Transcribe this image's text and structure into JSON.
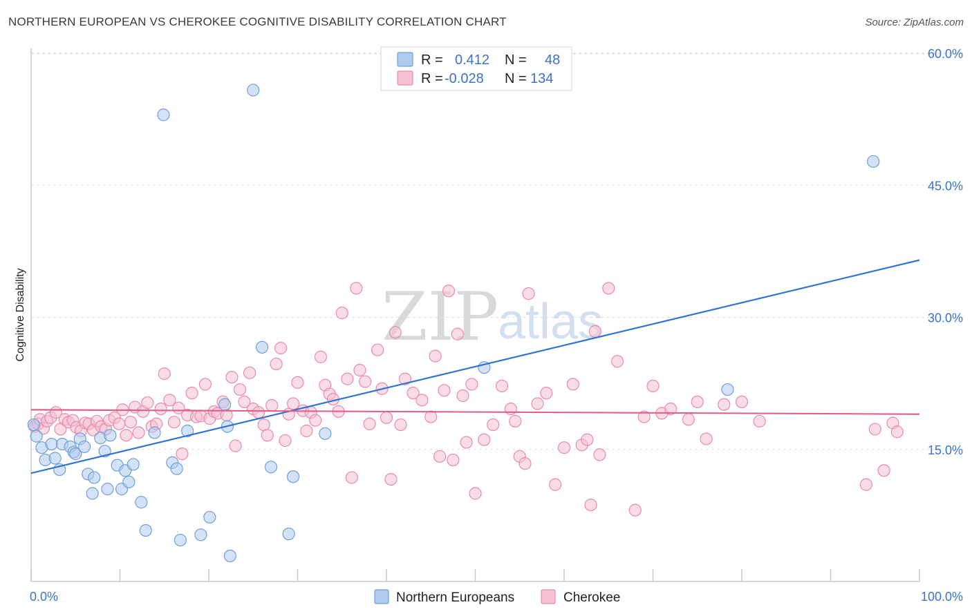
{
  "title": "NORTHERN EUROPEAN VS CHEROKEE COGNITIVE DISABILITY CORRELATION CHART",
  "source": "Source: ZipAtlas.com",
  "watermark": {
    "zip": "ZIP",
    "atlas": "atlas"
  },
  "legend": {
    "r_label": "R =",
    "n_label": "N =",
    "rows": [
      {
        "r": "0.412",
        "n": "48"
      },
      {
        "r": "-0.028",
        "n": "134"
      }
    ]
  },
  "colors": {
    "blue_fill": "#aecbef",
    "blue_stroke": "#6f9fd8",
    "blue_line": "#2f73d0",
    "pink_fill": "#f6c0d2",
    "pink_stroke": "#e88aab",
    "pink_line": "#e0608c"
  },
  "chart_data": {
    "type": "scatter",
    "title": "NORTHERN EUROPEAN VS CHEROKEE COGNITIVE DISABILITY CORRELATION CHART",
    "xlabel": "",
    "ylabel": "Cognitive Disability",
    "xlim": [
      0,
      100
    ],
    "ylim": [
      0,
      62
    ],
    "x_tick_labels": [
      "0.0%",
      "100.0%"
    ],
    "y_ticks": [
      15,
      30,
      45,
      60
    ],
    "y_tick_labels": [
      "15.0%",
      "30.0%",
      "45.0%",
      "60.0%"
    ],
    "grid": true,
    "legend_position": "top-center",
    "series": [
      {
        "name": "Northern Europeans",
        "trend": {
          "x": [
            0,
            100
          ],
          "y": [
            12.3,
            36.5
          ]
        },
        "points": [
          [
            0.3,
            17.8
          ],
          [
            0.6,
            16.5
          ],
          [
            1.2,
            15.2
          ],
          [
            1.6,
            13.8
          ],
          [
            2.3,
            15.6
          ],
          [
            2.7,
            14.0
          ],
          [
            3.2,
            12.7
          ],
          [
            3.5,
            15.6
          ],
          [
            4.4,
            15.3
          ],
          [
            4.8,
            14.7
          ],
          [
            5.0,
            14.5
          ],
          [
            5.5,
            16.2
          ],
          [
            6.0,
            15.3
          ],
          [
            6.4,
            12.2
          ],
          [
            6.9,
            10.0
          ],
          [
            7.1,
            11.8
          ],
          [
            7.8,
            16.3
          ],
          [
            8.3,
            14.8
          ],
          [
            8.6,
            10.5
          ],
          [
            8.9,
            16.6
          ],
          [
            9.7,
            13.2
          ],
          [
            10.2,
            10.5
          ],
          [
            10.6,
            12.6
          ],
          [
            11.0,
            11.3
          ],
          [
            11.5,
            13.3
          ],
          [
            12.4,
            9.0
          ],
          [
            12.9,
            5.8
          ],
          [
            13.9,
            16.9
          ],
          [
            14.9,
            53.0
          ],
          [
            15.9,
            13.5
          ],
          [
            16.4,
            12.8
          ],
          [
            16.8,
            4.7
          ],
          [
            17.6,
            17.1
          ],
          [
            19.1,
            5.3
          ],
          [
            20.1,
            7.3
          ],
          [
            21.8,
            20.1
          ],
          [
            22.1,
            17.6
          ],
          [
            22.4,
            2.9
          ],
          [
            25.0,
            55.8
          ],
          [
            26.0,
            26.6
          ],
          [
            27.0,
            13.0
          ],
          [
            29.0,
            5.4
          ],
          [
            29.5,
            11.9
          ],
          [
            33.1,
            16.8
          ],
          [
            51.0,
            24.3
          ],
          [
            78.4,
            21.8
          ],
          [
            94.8,
            47.7
          ]
        ]
      },
      {
        "name": "Cherokee",
        "trend": {
          "x": [
            0,
            100
          ],
          "y": [
            19.5,
            19.0
          ]
        },
        "points": [
          [
            0.4,
            17.6
          ],
          [
            0.8,
            17.9
          ],
          [
            1.0,
            18.4
          ],
          [
            1.4,
            17.4
          ],
          [
            1.8,
            18.2
          ],
          [
            2.2,
            18.6
          ],
          [
            2.8,
            19.2
          ],
          [
            3.3,
            17.3
          ],
          [
            3.8,
            18.4
          ],
          [
            4.2,
            18.1
          ],
          [
            4.7,
            18.3
          ],
          [
            5.1,
            17.5
          ],
          [
            5.6,
            17.1
          ],
          [
            6.1,
            18.0
          ],
          [
            6.5,
            17.9
          ],
          [
            7.0,
            17.2
          ],
          [
            7.4,
            18.2
          ],
          [
            7.9,
            17.6
          ],
          [
            8.4,
            17.3
          ],
          [
            8.8,
            18.3
          ],
          [
            9.4,
            18.6
          ],
          [
            9.9,
            17.9
          ],
          [
            10.3,
            19.5
          ],
          [
            10.7,
            16.6
          ],
          [
            11.2,
            18.1
          ],
          [
            11.7,
            19.8
          ],
          [
            12.1,
            16.9
          ],
          [
            12.6,
            19.3
          ],
          [
            13.1,
            20.3
          ],
          [
            13.6,
            17.6
          ],
          [
            14.1,
            17.9
          ],
          [
            14.6,
            19.6
          ],
          [
            15.0,
            23.6
          ],
          [
            15.6,
            20.6
          ],
          [
            16.1,
            18.1
          ],
          [
            16.6,
            19.7
          ],
          [
            17.0,
            14.5
          ],
          [
            17.6,
            18.9
          ],
          [
            18.1,
            21.4
          ],
          [
            18.6,
            18.7
          ],
          [
            19.1,
            18.8
          ],
          [
            19.6,
            22.4
          ],
          [
            20.1,
            18.5
          ],
          [
            20.6,
            19.3
          ],
          [
            21.0,
            19.1
          ],
          [
            21.6,
            20.4
          ],
          [
            22.0,
            18.9
          ],
          [
            22.6,
            23.2
          ],
          [
            23.0,
            15.4
          ],
          [
            23.5,
            21.8
          ],
          [
            24.0,
            20.4
          ],
          [
            24.6,
            23.7
          ],
          [
            25.0,
            19.6
          ],
          [
            25.6,
            19.2
          ],
          [
            26.2,
            17.8
          ],
          [
            26.6,
            16.6
          ],
          [
            27.1,
            20.0
          ],
          [
            27.6,
            24.7
          ],
          [
            28.1,
            26.5
          ],
          [
            28.6,
            16.0
          ],
          [
            29.0,
            19.0
          ],
          [
            29.5,
            20.2
          ],
          [
            30.0,
            22.6
          ],
          [
            30.6,
            19.4
          ],
          [
            31.0,
            17.1
          ],
          [
            31.5,
            19.2
          ],
          [
            32.0,
            18.3
          ],
          [
            32.6,
            25.5
          ],
          [
            33.1,
            22.3
          ],
          [
            33.6,
            21.3
          ],
          [
            34.0,
            20.7
          ],
          [
            34.6,
            19.3
          ],
          [
            35.0,
            30.5
          ],
          [
            35.6,
            23.0
          ],
          [
            36.1,
            11.8
          ],
          [
            36.6,
            33.3
          ],
          [
            37.0,
            24.0
          ],
          [
            37.6,
            22.7
          ],
          [
            38.1,
            17.9
          ],
          [
            39.0,
            26.3
          ],
          [
            39.5,
            21.9
          ],
          [
            40.0,
            18.6
          ],
          [
            40.5,
            11.6
          ],
          [
            41.0,
            28.3
          ],
          [
            41.6,
            17.8
          ],
          [
            42.1,
            23.0
          ],
          [
            43.0,
            21.4
          ],
          [
            44.0,
            20.6
          ],
          [
            45.0,
            18.7
          ],
          [
            45.5,
            25.6
          ],
          [
            46.0,
            14.2
          ],
          [
            46.5,
            21.7
          ],
          [
            47.0,
            33.0
          ],
          [
            47.5,
            13.8
          ],
          [
            48.0,
            28.1
          ],
          [
            48.6,
            21.1
          ],
          [
            49.0,
            15.8
          ],
          [
            49.6,
            22.4
          ],
          [
            50.0,
            10.0
          ],
          [
            51.0,
            16.1
          ],
          [
            52.0,
            17.8
          ],
          [
            53.0,
            22.2
          ],
          [
            54.0,
            19.6
          ],
          [
            54.5,
            18.2
          ],
          [
            55.0,
            14.2
          ],
          [
            55.6,
            13.4
          ],
          [
            56.0,
            32.7
          ],
          [
            57.0,
            20.2
          ],
          [
            58.0,
            21.4
          ],
          [
            59.0,
            11.0
          ],
          [
            60.0,
            15.2
          ],
          [
            61.0,
            22.4
          ],
          [
            62.0,
            15.5
          ],
          [
            62.6,
            16.1
          ],
          [
            63.0,
            8.7
          ],
          [
            63.5,
            28.4
          ],
          [
            64.0,
            14.4
          ],
          [
            65.0,
            33.3
          ],
          [
            66.0,
            25.0
          ],
          [
            68.0,
            8.1
          ],
          [
            69.0,
            18.7
          ],
          [
            70.0,
            22.2
          ],
          [
            71.0,
            19.1
          ],
          [
            72.0,
            19.6
          ],
          [
            74.0,
            18.4
          ],
          [
            75.0,
            20.4
          ],
          [
            76.0,
            16.2
          ],
          [
            78.0,
            20.1
          ],
          [
            80.0,
            20.4
          ],
          [
            82.0,
            18.2
          ],
          [
            94.0,
            11.0
          ],
          [
            95.0,
            17.3
          ],
          [
            96.0,
            12.6
          ],
          [
            97.0,
            18.0
          ],
          [
            97.5,
            17.0
          ]
        ]
      }
    ]
  },
  "bottom_legend": [
    {
      "label": "Northern Europeans",
      "color": "blue"
    },
    {
      "label": "Cherokee",
      "color": "pink"
    }
  ]
}
